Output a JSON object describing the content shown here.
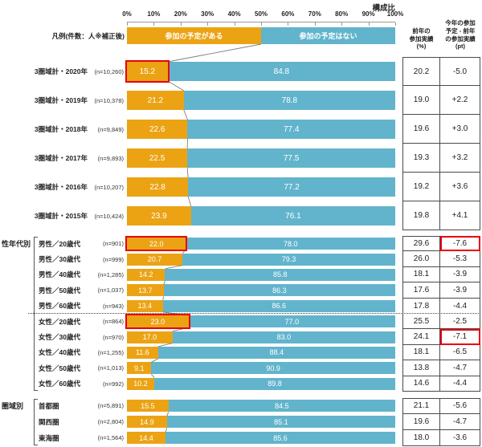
{
  "page_title": "構成比",
  "axis_ticks": [
    "0%",
    "10%",
    "20%",
    "30%",
    "40%",
    "50%",
    "60%",
    "70%",
    "80%",
    "90%",
    "100%"
  ],
  "legend": {
    "label": "凡例(件数：人※補正後)",
    "series_yes": "参加の予定がある",
    "series_no": "参加の予定はない"
  },
  "right_columns": {
    "prev_header_lines": [
      "前年の",
      "参加実績",
      "(%)"
    ],
    "diff_header_lines": [
      "今年の参加",
      "予定 - 前年",
      "の参加実績",
      "(pt)"
    ]
  },
  "colors": {
    "yes": "#EBA314",
    "no": "#62B4CC",
    "highlight_red": "#E8000F"
  },
  "chart_data": {
    "type": "bar",
    "stacked": true,
    "orientation": "horizontal",
    "unit": "%",
    "xlim": [
      0,
      100
    ],
    "series_names": [
      "参加の予定がある",
      "参加の予定はない"
    ],
    "groups": [
      {
        "label": "",
        "rows": [
          {
            "category": "3圏域計・2020年",
            "n": "(n=10,260)",
            "yes": 15.2,
            "no": 84.8,
            "prev": "20.2",
            "diff": "-5.0",
            "highlight_bar": true,
            "highlight_diff": false
          },
          {
            "category": "3圏域計・2019年",
            "n": "(n=10,378)",
            "yes": 21.2,
            "no": 78.8,
            "prev": "19.0",
            "diff": "+2.2",
            "highlight_bar": false,
            "highlight_diff": false
          },
          {
            "category": "3圏域計・2018年",
            "n": "(n=9,849)",
            "yes": 22.6,
            "no": 77.4,
            "prev": "19.6",
            "diff": "+3.0",
            "highlight_bar": false,
            "highlight_diff": false
          },
          {
            "category": "3圏域計・2017年",
            "n": "(n=9,893)",
            "yes": 22.5,
            "no": 77.5,
            "prev": "19.3",
            "diff": "+3.2",
            "highlight_bar": false,
            "highlight_diff": false
          },
          {
            "category": "3圏域計・2016年",
            "n": "(n=10,207)",
            "yes": 22.8,
            "no": 77.2,
            "prev": "19.2",
            "diff": "+3.6",
            "highlight_bar": false,
            "highlight_diff": false
          },
          {
            "category": "3圏域計・2015年",
            "n": "(n=10,424)",
            "yes": 23.9,
            "no": 76.1,
            "prev": "19.8",
            "diff": "+4.1",
            "highlight_bar": false,
            "highlight_diff": false
          }
        ]
      },
      {
        "label": "性年代別",
        "separator_after": 4,
        "rows": [
          {
            "category": "男性／20歳代",
            "n": "(n=901)",
            "yes": 22.0,
            "no": 78.0,
            "prev": "29.6",
            "diff": "-7.6",
            "highlight_bar": true,
            "highlight_diff": true
          },
          {
            "category": "男性／30歳代",
            "n": "(n=999)",
            "yes": 20.7,
            "no": 79.3,
            "prev": "26.0",
            "diff": "-5.3",
            "highlight_bar": false,
            "highlight_diff": false
          },
          {
            "category": "男性／40歳代",
            "n": "(n=1,285)",
            "yes": 14.2,
            "no": 85.8,
            "prev": "18.1",
            "diff": "-3.9",
            "highlight_bar": false,
            "highlight_diff": false
          },
          {
            "category": "男性／50歳代",
            "n": "(n=1,037)",
            "yes": 13.7,
            "no": 86.3,
            "prev": "17.6",
            "diff": "-3.9",
            "highlight_bar": false,
            "highlight_diff": false
          },
          {
            "category": "男性／60歳代",
            "n": "(n=943)",
            "yes": 13.4,
            "no": 86.6,
            "prev": "17.8",
            "diff": "-4.4",
            "highlight_bar": false,
            "highlight_diff": false
          },
          {
            "category": "女性／20歳代",
            "n": "(n=864)",
            "yes": 23.0,
            "no": 77.0,
            "prev": "25.5",
            "diff": "-2.5",
            "highlight_bar": true,
            "highlight_diff": false
          },
          {
            "category": "女性／30歳代",
            "n": "(n=970)",
            "yes": 17.0,
            "no": 83.0,
            "prev": "24.1",
            "diff": "-7.1",
            "highlight_bar": false,
            "highlight_diff": true
          },
          {
            "category": "女性／40歳代",
            "n": "(n=1,255)",
            "yes": 11.6,
            "no": 88.4,
            "prev": "18.1",
            "diff": "-6.5",
            "highlight_bar": false,
            "highlight_diff": false
          },
          {
            "category": "女性／50歳代",
            "n": "(n=1,013)",
            "yes": 9.1,
            "no": 90.9,
            "prev": "13.8",
            "diff": "-4.7",
            "highlight_bar": false,
            "highlight_diff": false
          },
          {
            "category": "女性／60歳代",
            "n": "(n=992)",
            "yes": 10.2,
            "no": 89.8,
            "prev": "14.6",
            "diff": "-4.4",
            "highlight_bar": false,
            "highlight_diff": false
          }
        ]
      },
      {
        "label": "圏域別",
        "rows": [
          {
            "category": "首都圏",
            "n": "(n=5,891)",
            "yes": 15.5,
            "no": 84.5,
            "prev": "21.1",
            "diff": "-5.6",
            "highlight_bar": false,
            "highlight_diff": false
          },
          {
            "category": "関西圏",
            "n": "(n=2,804)",
            "yes": 14.9,
            "no": 85.1,
            "prev": "19.6",
            "diff": "-4.7",
            "highlight_bar": false,
            "highlight_diff": false
          },
          {
            "category": "東海圏",
            "n": "(n=1,564)",
            "yes": 14.4,
            "no": 85.6,
            "prev": "18.0",
            "diff": "-3.6",
            "highlight_bar": false,
            "highlight_diff": false
          }
        ]
      }
    ]
  }
}
